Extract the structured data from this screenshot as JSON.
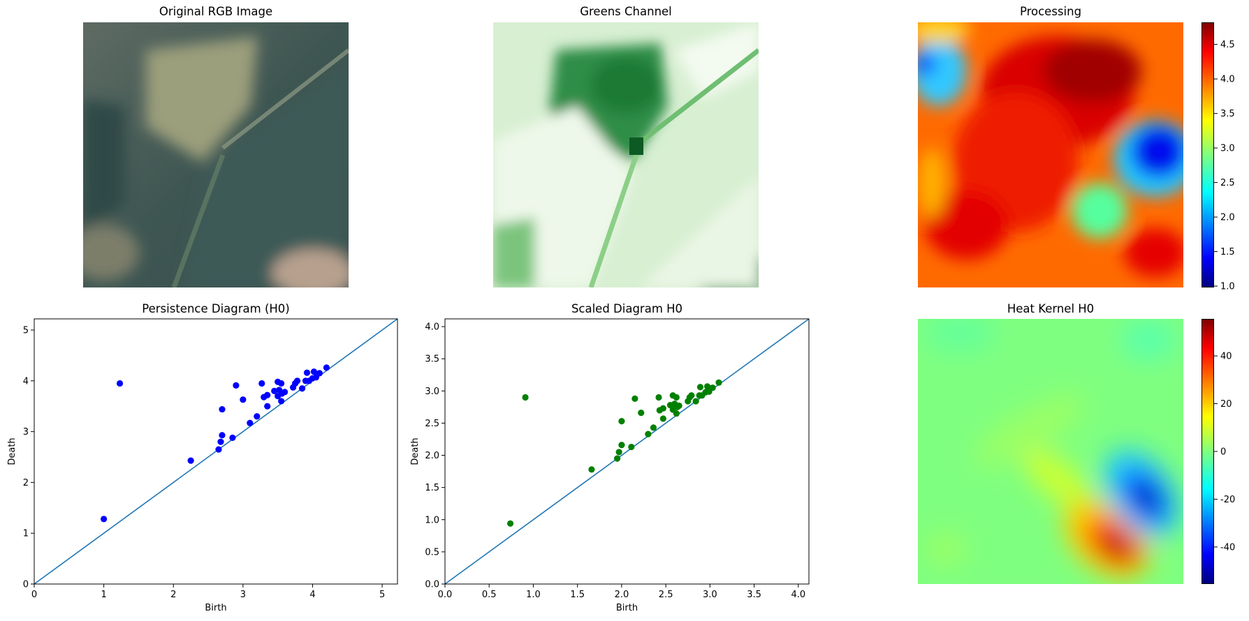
{
  "panels": {
    "rgb": {
      "title": "Original RGB Image"
    },
    "greens": {
      "title": "Greens Channel"
    },
    "processing": {
      "title": "Processing",
      "colorbar_ticks": [
        "1.0",
        "1.5",
        "2.0",
        "2.5",
        "3.0",
        "3.5",
        "4.0",
        "4.5"
      ]
    },
    "heat": {
      "title": "Heat Kernel H0",
      "colorbar_ticks": [
        "-40",
        "-20",
        "0",
        "20",
        "40"
      ]
    }
  },
  "chart_data": [
    {
      "type": "scatter",
      "title": "Persistence Diagram (H0)",
      "xlabel": "Birth",
      "ylabel": "Death",
      "xlim": [
        0,
        5.22
      ],
      "ylim": [
        0,
        5.22
      ],
      "xticks": [
        0,
        1,
        2,
        3,
        4,
        5
      ],
      "yticks": [
        0,
        1,
        2,
        3,
        4,
        5
      ],
      "point_color": "#0000ff",
      "line_color": "#1f77b4",
      "points": [
        [
          1.0,
          1.28
        ],
        [
          1.23,
          3.95
        ],
        [
          2.25,
          2.43
        ],
        [
          2.65,
          2.65
        ],
        [
          2.68,
          2.8
        ],
        [
          2.7,
          2.93
        ],
        [
          2.7,
          3.44
        ],
        [
          2.85,
          2.88
        ],
        [
          2.9,
          3.91
        ],
        [
          3.0,
          3.63
        ],
        [
          3.1,
          3.17
        ],
        [
          3.2,
          3.3
        ],
        [
          3.27,
          3.95
        ],
        [
          3.3,
          3.68
        ],
        [
          3.35,
          3.72
        ],
        [
          3.35,
          3.5
        ],
        [
          3.45,
          3.8
        ],
        [
          3.5,
          3.98
        ],
        [
          3.5,
          3.7
        ],
        [
          3.52,
          3.82
        ],
        [
          3.55,
          3.6
        ],
        [
          3.55,
          3.95
        ],
        [
          3.56,
          3.75
        ],
        [
          3.6,
          3.78
        ],
        [
          3.72,
          3.87
        ],
        [
          3.75,
          3.95
        ],
        [
          3.78,
          4.0
        ],
        [
          3.85,
          3.85
        ],
        [
          3.9,
          4.0
        ],
        [
          3.92,
          4.16
        ],
        [
          3.95,
          4.0
        ],
        [
          4.0,
          4.05
        ],
        [
          4.02,
          4.18
        ],
        [
          4.05,
          4.07
        ],
        [
          4.1,
          4.15
        ],
        [
          4.2,
          4.26
        ]
      ]
    },
    {
      "type": "scatter",
      "title": "Scaled Diagram H0",
      "xlabel": "Birth",
      "ylabel": "Death",
      "xlim": [
        0,
        4.12
      ],
      "ylim": [
        0,
        4.12
      ],
      "xticks": [
        0.0,
        0.5,
        1.0,
        1.5,
        2.0,
        2.5,
        3.0,
        3.5,
        4.0
      ],
      "yticks": [
        0.0,
        0.5,
        1.0,
        1.5,
        2.0,
        2.5,
        3.0,
        3.5,
        4.0
      ],
      "point_color": "#008000",
      "line_color": "#1f77b4",
      "points": [
        [
          0.74,
          0.94
        ],
        [
          0.91,
          2.9
        ],
        [
          1.66,
          1.78
        ],
        [
          1.95,
          1.95
        ],
        [
          1.97,
          2.05
        ],
        [
          2.0,
          2.16
        ],
        [
          2.0,
          2.53
        ],
        [
          2.11,
          2.13
        ],
        [
          2.15,
          2.88
        ],
        [
          2.22,
          2.66
        ],
        [
          2.3,
          2.33
        ],
        [
          2.36,
          2.43
        ],
        [
          2.42,
          2.9
        ],
        [
          2.43,
          2.7
        ],
        [
          2.47,
          2.73
        ],
        [
          2.47,
          2.57
        ],
        [
          2.55,
          2.78
        ],
        [
          2.58,
          2.93
        ],
        [
          2.58,
          2.71
        ],
        [
          2.6,
          2.8
        ],
        [
          2.62,
          2.65
        ],
        [
          2.62,
          2.9
        ],
        [
          2.63,
          2.75
        ],
        [
          2.65,
          2.77
        ],
        [
          2.75,
          2.84
        ],
        [
          2.77,
          2.9
        ],
        [
          2.79,
          2.93
        ],
        [
          2.84,
          2.84
        ],
        [
          2.88,
          2.93
        ],
        [
          2.89,
          3.06
        ],
        [
          2.91,
          2.93
        ],
        [
          2.95,
          2.98
        ],
        [
          2.97,
          3.07
        ],
        [
          2.99,
          2.99
        ],
        [
          3.03,
          3.05
        ],
        [
          3.1,
          3.13
        ]
      ]
    }
  ]
}
